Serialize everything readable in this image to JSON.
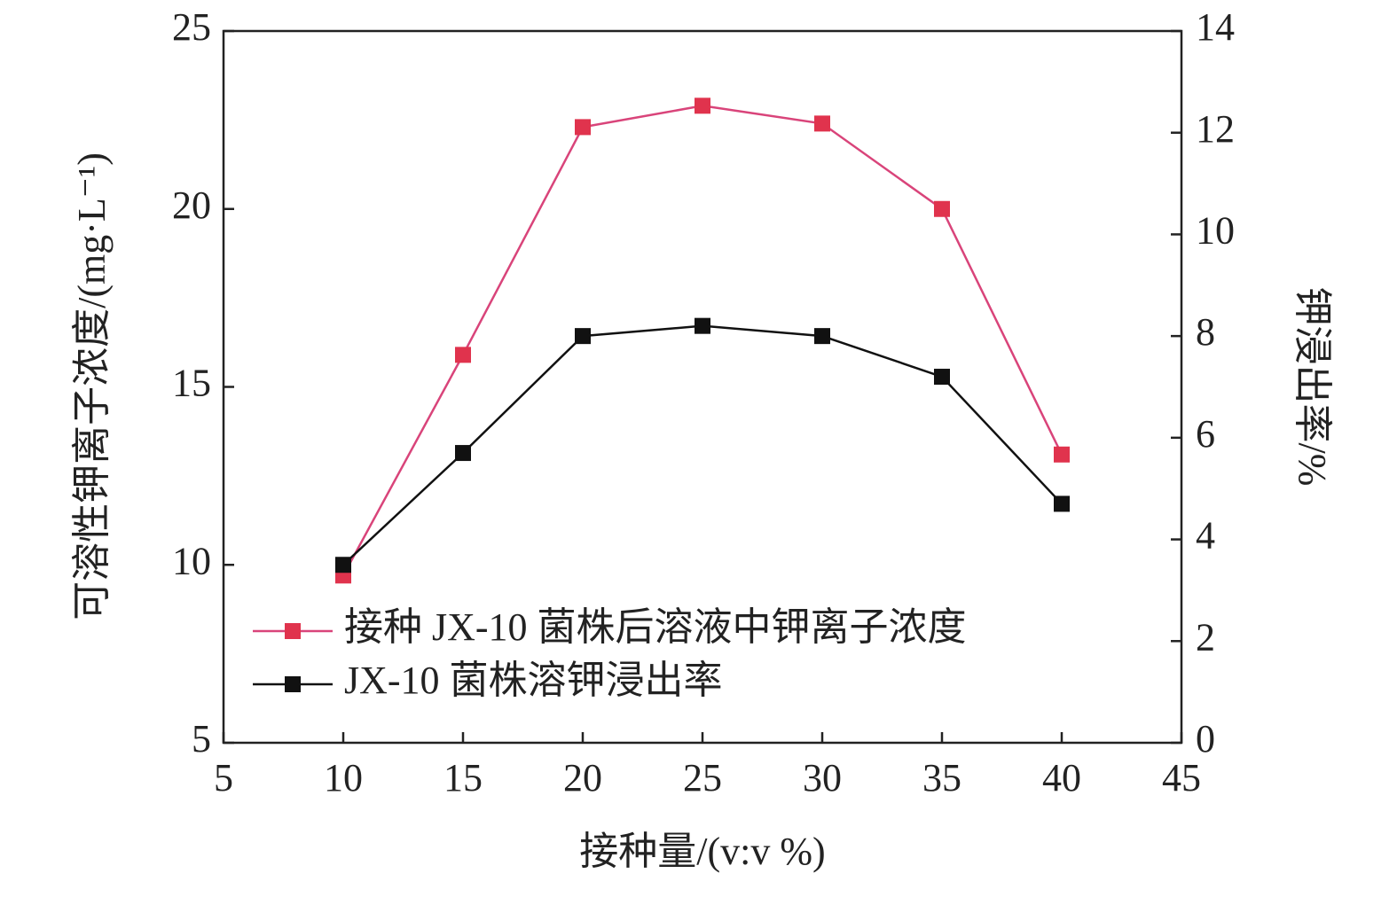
{
  "chart_data": {
    "type": "line",
    "x_label": "接种量/(v:v %)",
    "y_label": "可溶性钾离子浓度/(mg·L⁻¹)",
    "y2_label": "钾浸出率/%",
    "x": [
      10,
      15,
      20,
      25,
      30,
      35,
      40
    ],
    "series": [
      {
        "name": "接种 JX-10 菌株后溶液中钾离子浓度",
        "color": "#e0334d",
        "line_color": "#d9447a",
        "values": [
          9.7,
          15.9,
          22.3,
          22.9,
          22.4,
          20.0,
          13.1
        ]
      },
      {
        "name": "JX-10 菌株溶钾浸出率",
        "color": "#111111",
        "line_color": "#111111",
        "axis": "y2",
        "values": [
          3.5,
          5.7,
          8.0,
          8.2,
          8.0,
          7.2,
          4.7
        ]
      }
    ],
    "xlim": [
      5,
      45
    ],
    "xticks": [
      5,
      10,
      15,
      20,
      25,
      30,
      35,
      40,
      45
    ],
    "ylim": [
      5,
      25
    ],
    "yticks": [
      5,
      10,
      15,
      20,
      25
    ],
    "y2lim": [
      0,
      14
    ],
    "y2ticks": [
      0,
      2,
      4,
      6,
      8,
      10,
      12,
      14
    ],
    "grid": false,
    "legend": "lower left"
  }
}
